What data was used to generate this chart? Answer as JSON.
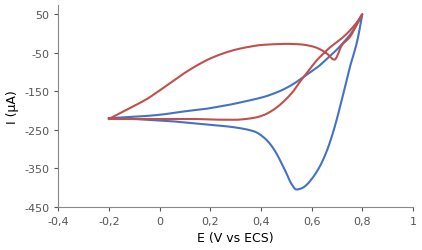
{
  "title": "",
  "xlabel": "E (V vs ECS)",
  "ylabel": "I (μA)",
  "xlim": [
    -0.4,
    1.0
  ],
  "ylim": [
    -450,
    75
  ],
  "xticks": [
    -0.4,
    -0.2,
    0.0,
    0.2,
    0.4,
    0.6,
    0.8,
    1.0
  ],
  "yticks": [
    50,
    -50,
    -150,
    -250,
    -350,
    -450
  ],
  "xtick_labels": [
    "-0,4",
    "-0,2",
    "0",
    "0,2",
    "0,4",
    "0,6",
    "0,8",
    "1"
  ],
  "ytick_labels": [
    "50",
    "-50",
    "-150",
    "-250",
    "-350",
    "-450"
  ],
  "blue_color": "#4472c4",
  "red_color": "#c0504d",
  "blue_forward_x": [
    -0.2,
    -0.18,
    -0.15,
    -0.1,
    -0.05,
    0.0,
    0.05,
    0.1,
    0.15,
    0.2,
    0.25,
    0.3,
    0.35,
    0.38,
    0.4,
    0.42,
    0.44,
    0.46,
    0.48,
    0.5,
    0.52,
    0.54,
    0.56,
    0.58,
    0.6,
    0.63,
    0.66,
    0.69,
    0.72,
    0.75,
    0.78,
    0.8
  ],
  "blue_forward_y": [
    -220,
    -220,
    -221,
    -222,
    -224,
    -226,
    -228,
    -231,
    -234,
    -237,
    -240,
    -244,
    -250,
    -256,
    -264,
    -275,
    -290,
    -310,
    -335,
    -362,
    -390,
    -405,
    -402,
    -393,
    -378,
    -348,
    -305,
    -245,
    -170,
    -90,
    -20,
    50
  ],
  "blue_return_x": [
    0.8,
    0.78,
    0.75,
    0.73,
    0.71,
    0.69,
    0.67,
    0.65,
    0.63,
    0.6,
    0.57,
    0.54,
    0.51,
    0.48,
    0.45,
    0.42,
    0.38,
    0.34,
    0.3,
    0.25,
    0.2,
    0.15,
    0.1,
    0.05,
    0.0,
    -0.05,
    -0.1,
    -0.15,
    -0.2
  ],
  "blue_return_y": [
    50,
    25,
    -5,
    -20,
    -35,
    -48,
    -60,
    -72,
    -84,
    -98,
    -112,
    -126,
    -138,
    -148,
    -156,
    -163,
    -170,
    -176,
    -182,
    -188,
    -194,
    -198,
    -202,
    -207,
    -211,
    -214,
    -216,
    -218,
    -220
  ],
  "red_forward_x": [
    -0.2,
    -0.18,
    -0.15,
    -0.1,
    -0.05,
    0.0,
    0.05,
    0.1,
    0.15,
    0.2,
    0.25,
    0.3,
    0.35,
    0.4,
    0.45,
    0.5,
    0.55,
    0.6,
    0.63,
    0.66,
    0.69,
    0.72,
    0.75,
    0.78,
    0.8
  ],
  "red_forward_y": [
    -222,
    -215,
    -205,
    -188,
    -170,
    -148,
    -125,
    -102,
    -82,
    -65,
    -52,
    -42,
    -35,
    -30,
    -28,
    -27,
    -28,
    -33,
    -40,
    -52,
    -68,
    -30,
    -10,
    25,
    50
  ],
  "red_return_x": [
    0.8,
    0.78,
    0.76,
    0.74,
    0.72,
    0.7,
    0.68,
    0.65,
    0.62,
    0.59,
    0.56,
    0.53,
    0.5,
    0.47,
    0.44,
    0.41,
    0.38,
    0.34,
    0.3,
    0.25,
    0.2,
    0.15,
    0.1,
    0.05,
    0.0,
    -0.05,
    -0.1,
    -0.15,
    -0.2
  ],
  "red_return_y": [
    50,
    30,
    14,
    0,
    -12,
    -22,
    -32,
    -50,
    -70,
    -95,
    -120,
    -148,
    -170,
    -188,
    -202,
    -212,
    -218,
    -222,
    -224,
    -224,
    -223,
    -222,
    -222,
    -222,
    -222,
    -222,
    -222,
    -222,
    -222
  ],
  "linewidth": 1.5,
  "figsize": [
    4.22,
    2.51
  ],
  "dpi": 100
}
